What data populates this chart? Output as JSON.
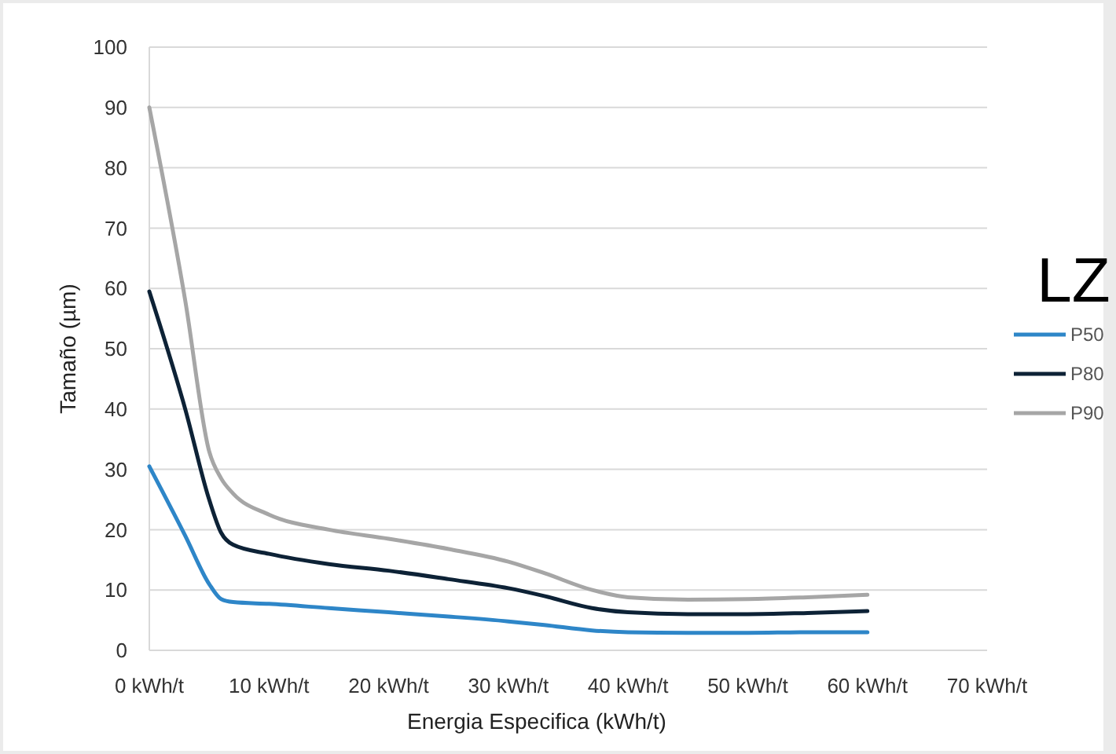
{
  "chart_data": {
    "type": "line",
    "xlabel": "Energia Especifica (kWh/t)",
    "ylabel": "Tamaño (µm)",
    "legend_title": "LZ",
    "legend": "right",
    "grid": "y",
    "marker": "none",
    "line_style": "solid",
    "xlim": [
      0,
      70
    ],
    "xticks": [
      {
        "value": 0,
        "label": "0 kWh/t"
      },
      {
        "value": 10,
        "label": "10 kWh/t"
      },
      {
        "value": 20,
        "label": "20 kWh/t"
      },
      {
        "value": 30,
        "label": "30 kWh/t"
      },
      {
        "value": 40,
        "label": "40 kWh/t"
      },
      {
        "value": 50,
        "label": "50 kWh/t"
      },
      {
        "value": 60,
        "label": "60 kWh/t"
      },
      {
        "value": 70,
        "label": "70 kWh/t"
      }
    ],
    "ylim": [
      0,
      100
    ],
    "yticks": [
      0,
      10,
      20,
      30,
      40,
      50,
      60,
      70,
      80,
      90,
      100
    ],
    "x": [
      0,
      3,
      5,
      6,
      7,
      10,
      15,
      20,
      25,
      30,
      33,
      37,
      40,
      45,
      50,
      55,
      60
    ],
    "series": [
      {
        "name": "P50",
        "color": "#2e86c8",
        "values": [
          30.5,
          19,
          11,
          8.5,
          8,
          7.7,
          7,
          6.3,
          5.6,
          4.8,
          4.2,
          3.3,
          3,
          2.9,
          2.9,
          3,
          3
        ]
      },
      {
        "name": "P80",
        "color": "#0d2236",
        "values": [
          59.5,
          40,
          25,
          19.5,
          17.5,
          16,
          14.3,
          13.2,
          11.8,
          10.3,
          9,
          7,
          6.3,
          6,
          6,
          6.2,
          6.5
        ]
      },
      {
        "name": "P90",
        "color": "#a6a6a6",
        "values": [
          90,
          58,
          33,
          28.5,
          26,
          22.5,
          20,
          18.5,
          16.8,
          14.7,
          12.8,
          10,
          8.8,
          8.4,
          8.5,
          8.8,
          9.2
        ]
      }
    ]
  }
}
